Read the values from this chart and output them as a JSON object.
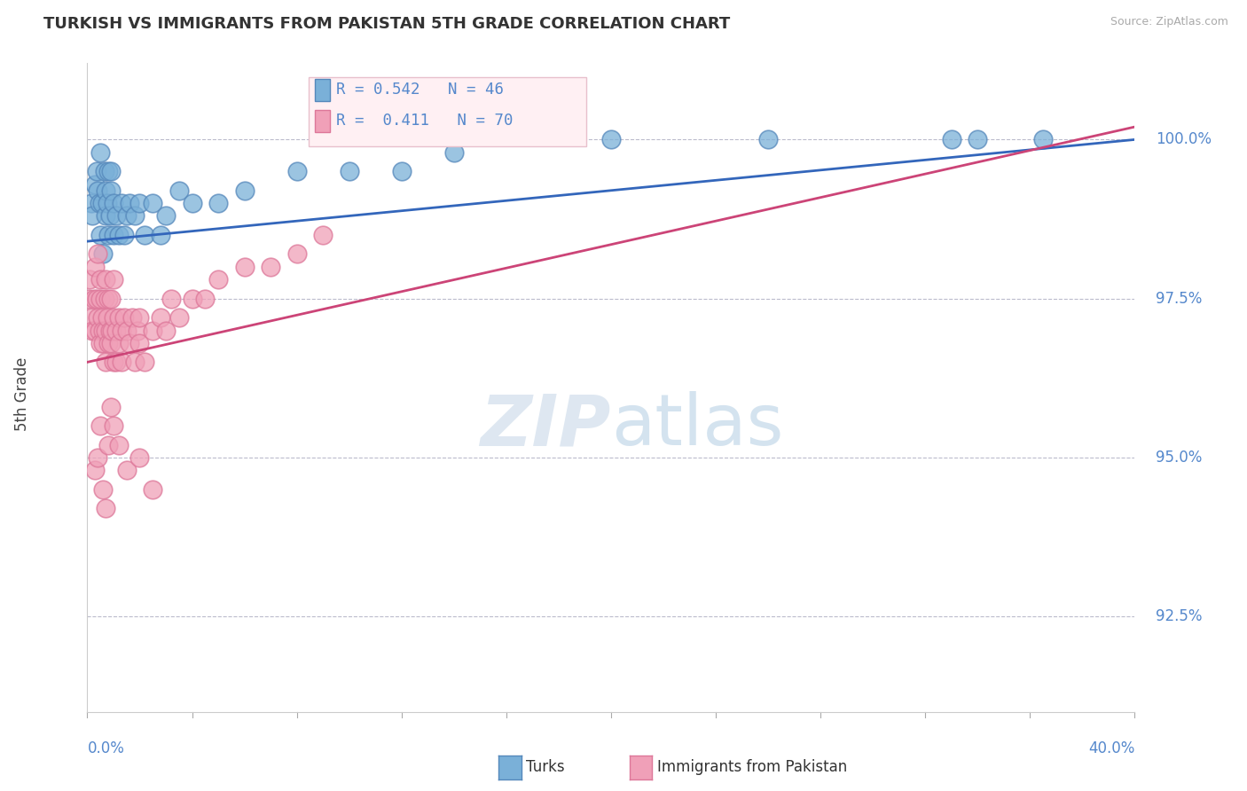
{
  "title": "TURKISH VS IMMIGRANTS FROM PAKISTAN 5TH GRADE CORRELATION CHART",
  "source": "Source: ZipAtlas.com",
  "ylabel": "5th Grade",
  "xlim": [
    0.0,
    40.0
  ],
  "ylim": [
    91.0,
    101.2
  ],
  "yticks": [
    92.5,
    95.0,
    97.5,
    100.0
  ],
  "ytick_labels": [
    "92.5%",
    "95.0%",
    "97.5%",
    "100.0%"
  ],
  "blue_R": 0.542,
  "blue_N": 46,
  "pink_R": 0.411,
  "pink_N": 70,
  "blue_color": "#7ab0d8",
  "pink_color": "#f0a0b8",
  "blue_edge_color": "#5588bb",
  "pink_edge_color": "#dd7799",
  "blue_line_color": "#3366bb",
  "pink_line_color": "#cc4477",
  "axis_color": "#5588cc",
  "grid_color": "#bbbbcc",
  "turks_x": [
    0.15,
    0.2,
    0.3,
    0.35,
    0.4,
    0.45,
    0.5,
    0.5,
    0.55,
    0.6,
    0.65,
    0.7,
    0.7,
    0.75,
    0.8,
    0.8,
    0.85,
    0.9,
    0.9,
    1.0,
    1.0,
    1.1,
    1.2,
    1.3,
    1.4,
    1.5,
    1.6,
    1.8,
    2.0,
    2.2,
    2.5,
    2.8,
    3.0,
    3.5,
    4.0,
    5.0,
    6.0,
    8.0,
    10.0,
    12.0,
    14.0,
    20.0,
    26.0,
    33.0,
    34.0,
    36.5
  ],
  "turks_y": [
    99.0,
    98.8,
    99.3,
    99.5,
    99.2,
    99.0,
    98.5,
    99.8,
    99.0,
    98.2,
    99.5,
    98.8,
    99.2,
    99.0,
    98.5,
    99.5,
    98.8,
    99.2,
    99.5,
    98.5,
    99.0,
    98.8,
    98.5,
    99.0,
    98.5,
    98.8,
    99.0,
    98.8,
    99.0,
    98.5,
    99.0,
    98.5,
    98.8,
    99.2,
    99.0,
    99.0,
    99.2,
    99.5,
    99.5,
    99.5,
    99.8,
    100.0,
    100.0,
    100.0,
    100.0,
    100.0
  ],
  "pakistan_x": [
    0.05,
    0.1,
    0.15,
    0.2,
    0.25,
    0.3,
    0.3,
    0.35,
    0.4,
    0.4,
    0.45,
    0.5,
    0.5,
    0.5,
    0.55,
    0.6,
    0.6,
    0.65,
    0.7,
    0.7,
    0.7,
    0.75,
    0.8,
    0.8,
    0.85,
    0.9,
    0.9,
    0.95,
    1.0,
    1.0,
    1.0,
    1.1,
    1.1,
    1.2,
    1.2,
    1.3,
    1.3,
    1.4,
    1.5,
    1.6,
    1.7,
    1.8,
    1.9,
    2.0,
    2.0,
    2.2,
    2.5,
    2.8,
    3.0,
    3.2,
    3.5,
    4.0,
    4.5,
    5.0,
    6.0,
    7.0,
    8.0,
    9.0,
    0.3,
    0.4,
    0.5,
    0.6,
    0.7,
    0.8,
    0.9,
    1.0,
    1.2,
    1.5,
    2.0,
    2.5
  ],
  "pakistan_y": [
    97.5,
    97.8,
    97.2,
    97.0,
    97.5,
    97.0,
    98.0,
    97.5,
    97.2,
    98.2,
    97.0,
    97.5,
    97.8,
    96.8,
    97.2,
    97.0,
    96.8,
    97.5,
    97.0,
    96.5,
    97.8,
    97.2,
    97.5,
    96.8,
    97.0,
    97.5,
    96.8,
    97.0,
    97.2,
    96.5,
    97.8,
    97.0,
    96.5,
    97.2,
    96.8,
    97.0,
    96.5,
    97.2,
    97.0,
    96.8,
    97.2,
    96.5,
    97.0,
    96.8,
    97.2,
    96.5,
    97.0,
    97.2,
    97.0,
    97.5,
    97.2,
    97.5,
    97.5,
    97.8,
    98.0,
    98.0,
    98.2,
    98.5,
    94.8,
    95.0,
    95.5,
    94.5,
    94.2,
    95.2,
    95.8,
    95.5,
    95.2,
    94.8,
    95.0,
    94.5
  ]
}
